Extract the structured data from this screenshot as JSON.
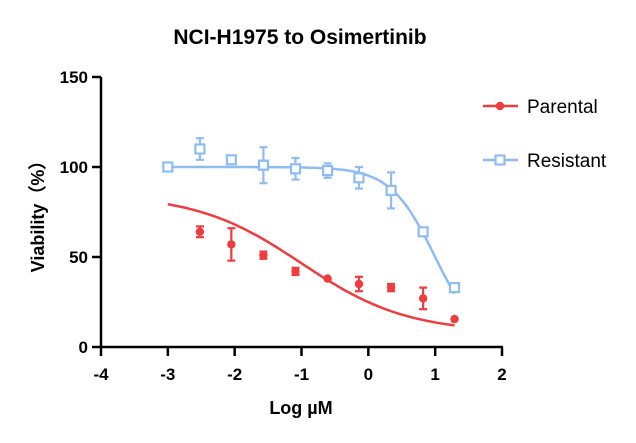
{
  "chart_data": {
    "type": "scatter",
    "title": "NCI-H1975 to Osimertinib",
    "xlabel": "Log µM",
    "ylabel": "Viability（%）",
    "xlim": [
      -4,
      2
    ],
    "ylim": [
      0,
      150
    ],
    "xticks": [
      -4,
      -3,
      -2,
      -1,
      0,
      1,
      2
    ],
    "yticks": [
      0,
      50,
      100,
      150
    ],
    "grid": false,
    "legend_position": "right",
    "series": [
      {
        "name": "Parental",
        "color": "#f03c3c",
        "marker": "filled-circle",
        "x": [
          -3.0,
          -2.52,
          -2.05,
          -1.57,
          -1.09,
          -0.61,
          -0.14,
          0.34,
          0.82,
          1.29
        ],
        "y": [
          100,
          64,
          57,
          51,
          42,
          38,
          35,
          33,
          27,
          15.5
        ],
        "error": [
          0,
          3,
          9,
          2,
          2,
          0,
          4,
          2,
          6,
          0
        ],
        "fit_4pl": {
          "top": 85,
          "bottom": 8,
          "log_ic50": -1.0,
          "hill": 0.55
        }
      },
      {
        "name": "Resistant",
        "color": "#8fbcf3",
        "marker": "open-square",
        "x": [
          -3.0,
          -2.52,
          -2.05,
          -1.57,
          -1.09,
          -0.61,
          -0.14,
          0.34,
          0.82,
          1.29
        ],
        "y": [
          100,
          110,
          104,
          101,
          99,
          98,
          94,
          87,
          64,
          33
        ],
        "error": [
          0,
          6,
          2,
          10,
          6,
          4,
          6,
          10,
          0,
          0
        ],
        "fit_4pl": {
          "top": 100,
          "bottom": 0,
          "log_ic50": 1.0,
          "hill": 1.3
        }
      }
    ]
  }
}
